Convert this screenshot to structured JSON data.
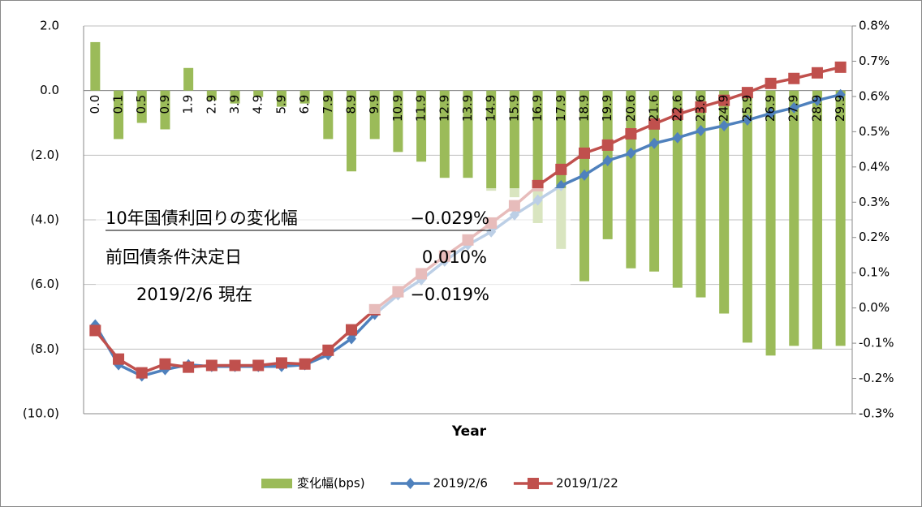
{
  "chart_data": {
    "type": "bar_line_combo",
    "x_label": "Year",
    "categories": [
      "0.0",
      "0.1",
      "0.5",
      "0.9",
      "1.9",
      "2.9",
      "3.9",
      "4.9",
      "5.9",
      "6.9",
      "7.9",
      "8.9",
      "9.9",
      "10.9",
      "11.9",
      "12.9",
      "13.9",
      "14.9",
      "15.9",
      "16.9",
      "17.9",
      "18.9",
      "19.9",
      "20.6",
      "21.6",
      "22.6",
      "23.6",
      "24.9",
      "25.9",
      "26.9",
      "27.9",
      "28.9",
      "29.9"
    ],
    "series": [
      {
        "name": "変化幅(bps)",
        "kind": "bar",
        "axis": "y",
        "color": "#9bbb59",
        "values": [
          1.5,
          -1.5,
          -1.0,
          -1.2,
          0.7,
          -0.3,
          -0.4,
          -0.2,
          -0.5,
          -0.4,
          -1.5,
          -2.5,
          -1.5,
          -1.9,
          -2.2,
          -2.7,
          -2.7,
          -3.1,
          -3.3,
          -4.1,
          -4.9,
          -5.9,
          -4.6,
          -5.5,
          -5.6,
          -6.1,
          -6.4,
          -6.9,
          -7.8,
          -8.2,
          -7.9,
          -8.0,
          -7.9
        ]
      },
      {
        "name": "2019/2/6",
        "kind": "line",
        "marker": "diamond",
        "axis": "y2",
        "color": "#4f81bd",
        "values": [
          -0.048,
          -0.161,
          -0.193,
          -0.175,
          -0.161,
          -0.166,
          -0.166,
          -0.166,
          -0.166,
          -0.161,
          -0.133,
          -0.087,
          -0.018,
          0.037,
          0.08,
          0.133,
          0.179,
          0.216,
          0.264,
          0.306,
          0.347,
          0.377,
          0.418,
          0.439,
          0.467,
          0.483,
          0.503,
          0.517,
          0.533,
          0.552,
          0.568,
          0.589,
          0.605
        ]
      },
      {
        "name": "2019/1/22",
        "kind": "line",
        "marker": "square",
        "axis": "y2",
        "color": "#c0504d",
        "values": [
          -0.064,
          -0.145,
          -0.184,
          -0.159,
          -0.168,
          -0.163,
          -0.163,
          -0.163,
          -0.156,
          -0.159,
          -0.12,
          -0.062,
          -0.005,
          0.046,
          0.097,
          0.147,
          0.193,
          0.241,
          0.29,
          0.347,
          0.393,
          0.439,
          0.462,
          0.494,
          0.522,
          0.549,
          0.57,
          0.589,
          0.611,
          0.637,
          0.651,
          0.667,
          0.683
        ]
      }
    ],
    "ylim": [
      -10,
      2
    ],
    "yticks": [
      {
        "value": 2,
        "label": "2.0"
      },
      {
        "value": 0,
        "label": "0.0"
      },
      {
        "value": -2,
        "label": "(2.0)"
      },
      {
        "value": -4,
        "label": "(4.0)"
      },
      {
        "value": -6,
        "label": "(6.0)"
      },
      {
        "value": -8,
        "label": "(8.0)"
      },
      {
        "value": -10,
        "label": "(10.0)"
      }
    ],
    "y2lim": [
      -0.3,
      0.8
    ],
    "y2ticks": [
      {
        "value": 0.8,
        "label": "0.8%"
      },
      {
        "value": 0.7,
        "label": "0.7%"
      },
      {
        "value": 0.6,
        "label": "0.6%"
      },
      {
        "value": 0.5,
        "label": "0.5%"
      },
      {
        "value": 0.4,
        "label": "0.4%"
      },
      {
        "value": 0.3,
        "label": "0.3%"
      },
      {
        "value": 0.2,
        "label": "0.2%"
      },
      {
        "value": 0.1,
        "label": "0.1%"
      },
      {
        "value": 0,
        "label": "0.0%"
      },
      {
        "value": -0.1,
        "label": "-0.1%"
      },
      {
        "value": -0.2,
        "label": "-0.2%"
      },
      {
        "value": -0.3,
        "label": "-0.3%"
      }
    ],
    "negative_label_color": "#ff0000",
    "grid": true,
    "legend": "bottom",
    "annotations": [
      {
        "label": "10年国債利回りの変化幅",
        "value": "−0.029%"
      },
      {
        "label": "前回債条件決定日",
        "value": "0.010%"
      },
      {
        "label": "2019/2/6 現在",
        "value": "−0.019%"
      }
    ]
  }
}
